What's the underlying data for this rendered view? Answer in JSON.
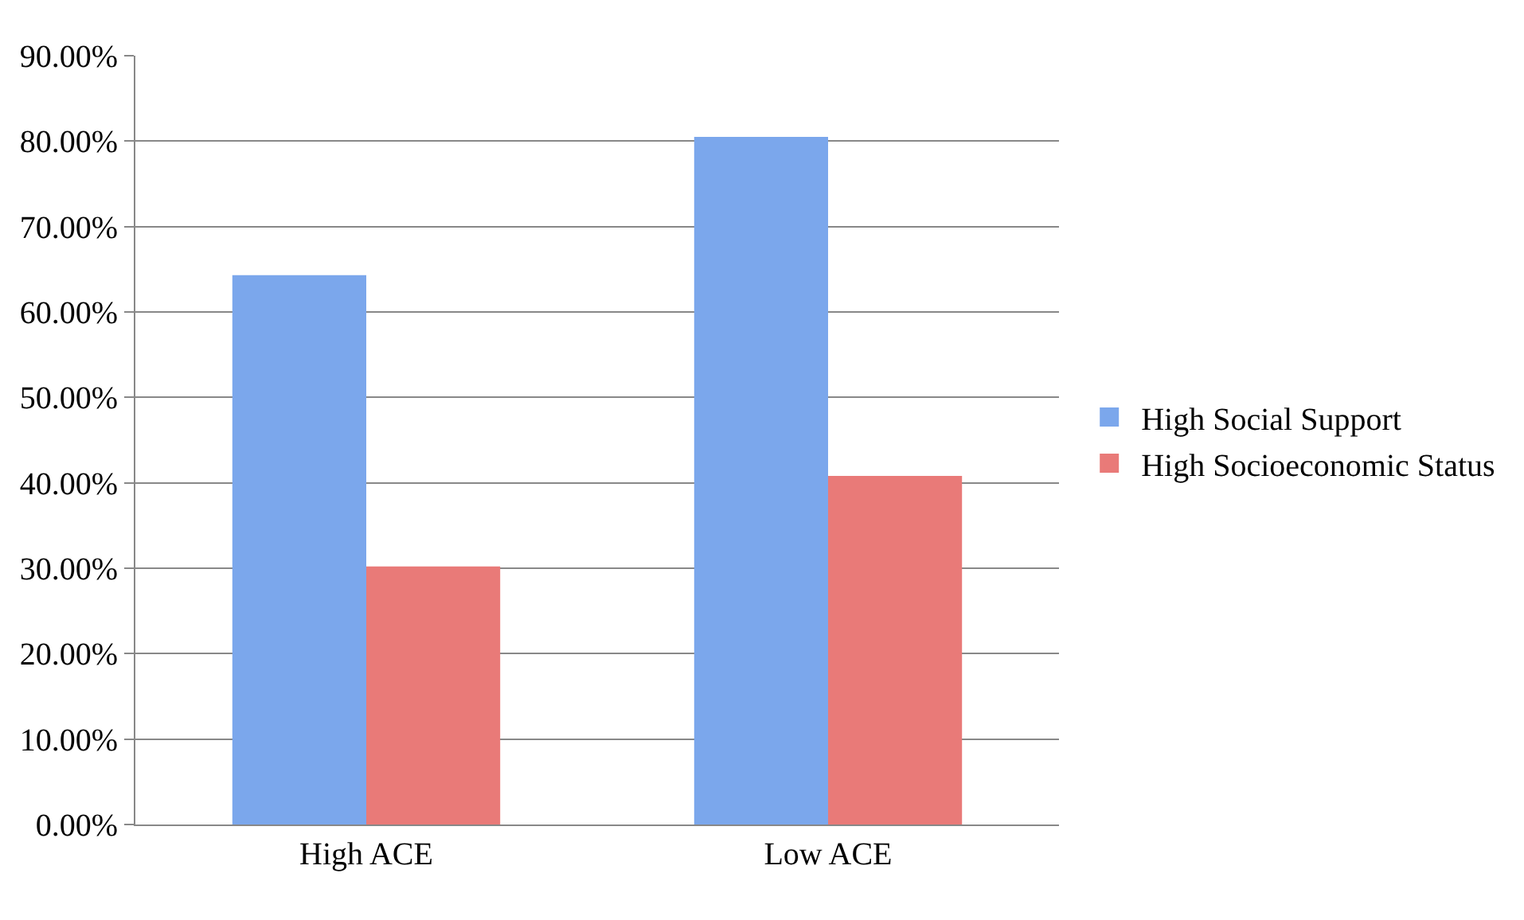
{
  "chart_data": {
    "type": "bar",
    "categories": [
      "High ACE",
      "Low ACE"
    ],
    "series": [
      {
        "name": "High Social Support",
        "color": "#7ba7ec",
        "values": [
          64.3,
          80.5
        ]
      },
      {
        "name": "High Socioeconomic Status",
        "color": "#e97a78",
        "values": [
          30.2,
          40.8
        ]
      }
    ],
    "ylim": [
      0,
      90
    ],
    "yticks": [
      {
        "value": 0,
        "label": "0.00%"
      },
      {
        "value": 10,
        "label": "10.00%"
      },
      {
        "value": 20,
        "label": "20.00%"
      },
      {
        "value": 30,
        "label": "30.00%"
      },
      {
        "value": 40,
        "label": "40.00%"
      },
      {
        "value": 50,
        "label": "50.00%"
      },
      {
        "value": 60,
        "label": "60.00%"
      },
      {
        "value": 70,
        "label": "70.00%"
      },
      {
        "value": 80,
        "label": "80.00%"
      },
      {
        "value": 90,
        "label": "90.00%"
      }
    ],
    "grid": "y",
    "legend": "right"
  }
}
